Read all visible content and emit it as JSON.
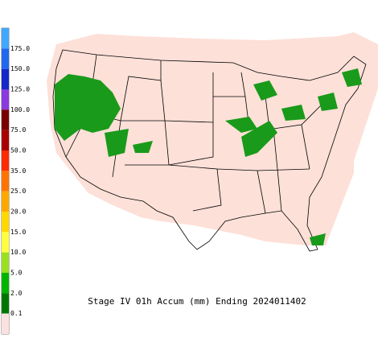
{
  "caption": "Stage IV 01h Accum (mm) Ending 2024011402",
  "legend": [
    {
      "label": null,
      "color": "#40a8ff"
    },
    {
      "label": "175.0",
      "color": "#2068f0"
    },
    {
      "label": "150.0",
      "color": "#1428c8"
    },
    {
      "label": "125.0",
      "color": "#8a38e0"
    },
    {
      "label": "100.0",
      "color": "#7a0000"
    },
    {
      "label": "75.0",
      "color": "#a80000"
    },
    {
      "label": "50.0",
      "color": "#ff2a00"
    },
    {
      "label": "35.0",
      "color": "#ff7400"
    },
    {
      "label": "25.0",
      "color": "#ffa800"
    },
    {
      "label": "20.0",
      "color": "#ffd800"
    },
    {
      "label": "15.0",
      "color": "#ffff40"
    },
    {
      "label": "10.0",
      "color": "#98e020"
    },
    {
      "label": "5.0",
      "color": "#00b400"
    },
    {
      "label": "2.0",
      "color": "#007800"
    },
    {
      "label": "0.1",
      "color": "#fbe2e0"
    }
  ]
}
